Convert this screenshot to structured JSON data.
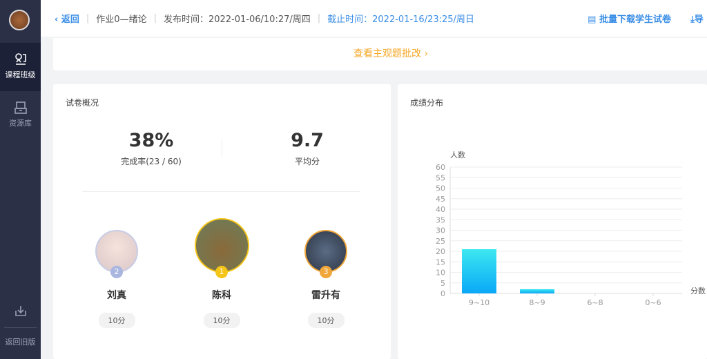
{
  "sidebar": {
    "items": [
      {
        "label": "课程班级",
        "icon": "class-icon",
        "active": true
      },
      {
        "label": "资源库",
        "icon": "library-icon"
      }
    ],
    "bottom": {
      "label": "返回旧版",
      "icon": "download-icon"
    }
  },
  "header": {
    "back": "返回",
    "assignment": "作业0—绪论",
    "publish": "发布时间：2022-01-06/10:27/周四",
    "deadline": "截止时间：2022-01-16/23:25/周日",
    "batch_download": "批量下载学生试卷",
    "export": "导"
  },
  "review_link": "查看主观题批改",
  "overview": {
    "title": "试卷概况",
    "completion": "38%",
    "completion_label": "完成率(23 / 60)",
    "average": "9.7",
    "average_label": "平均分",
    "top": [
      {
        "rank": "2",
        "name": "刘真",
        "score": "10分"
      },
      {
        "rank": "1",
        "name": "陈科",
        "score": "10分"
      },
      {
        "rank": "3",
        "name": "雷升有",
        "score": "10分"
      }
    ]
  },
  "distribution": {
    "title": "成绩分布"
  },
  "chart_data": {
    "type": "bar",
    "categories": [
      "9~10",
      "8~9",
      "6~8",
      "0~6"
    ],
    "values": [
      21,
      2,
      0,
      0
    ],
    "ylabel": "人数",
    "xlabel": "分数",
    "ylim": [
      0,
      60
    ],
    "yticks": [
      "0",
      "5",
      "10",
      "15",
      "20",
      "25",
      "30",
      "35",
      "40",
      "45",
      "50",
      "55",
      "60"
    ],
    "grid": true,
    "colors": [
      "#3de8f0",
      "#0aa8f7"
    ]
  }
}
